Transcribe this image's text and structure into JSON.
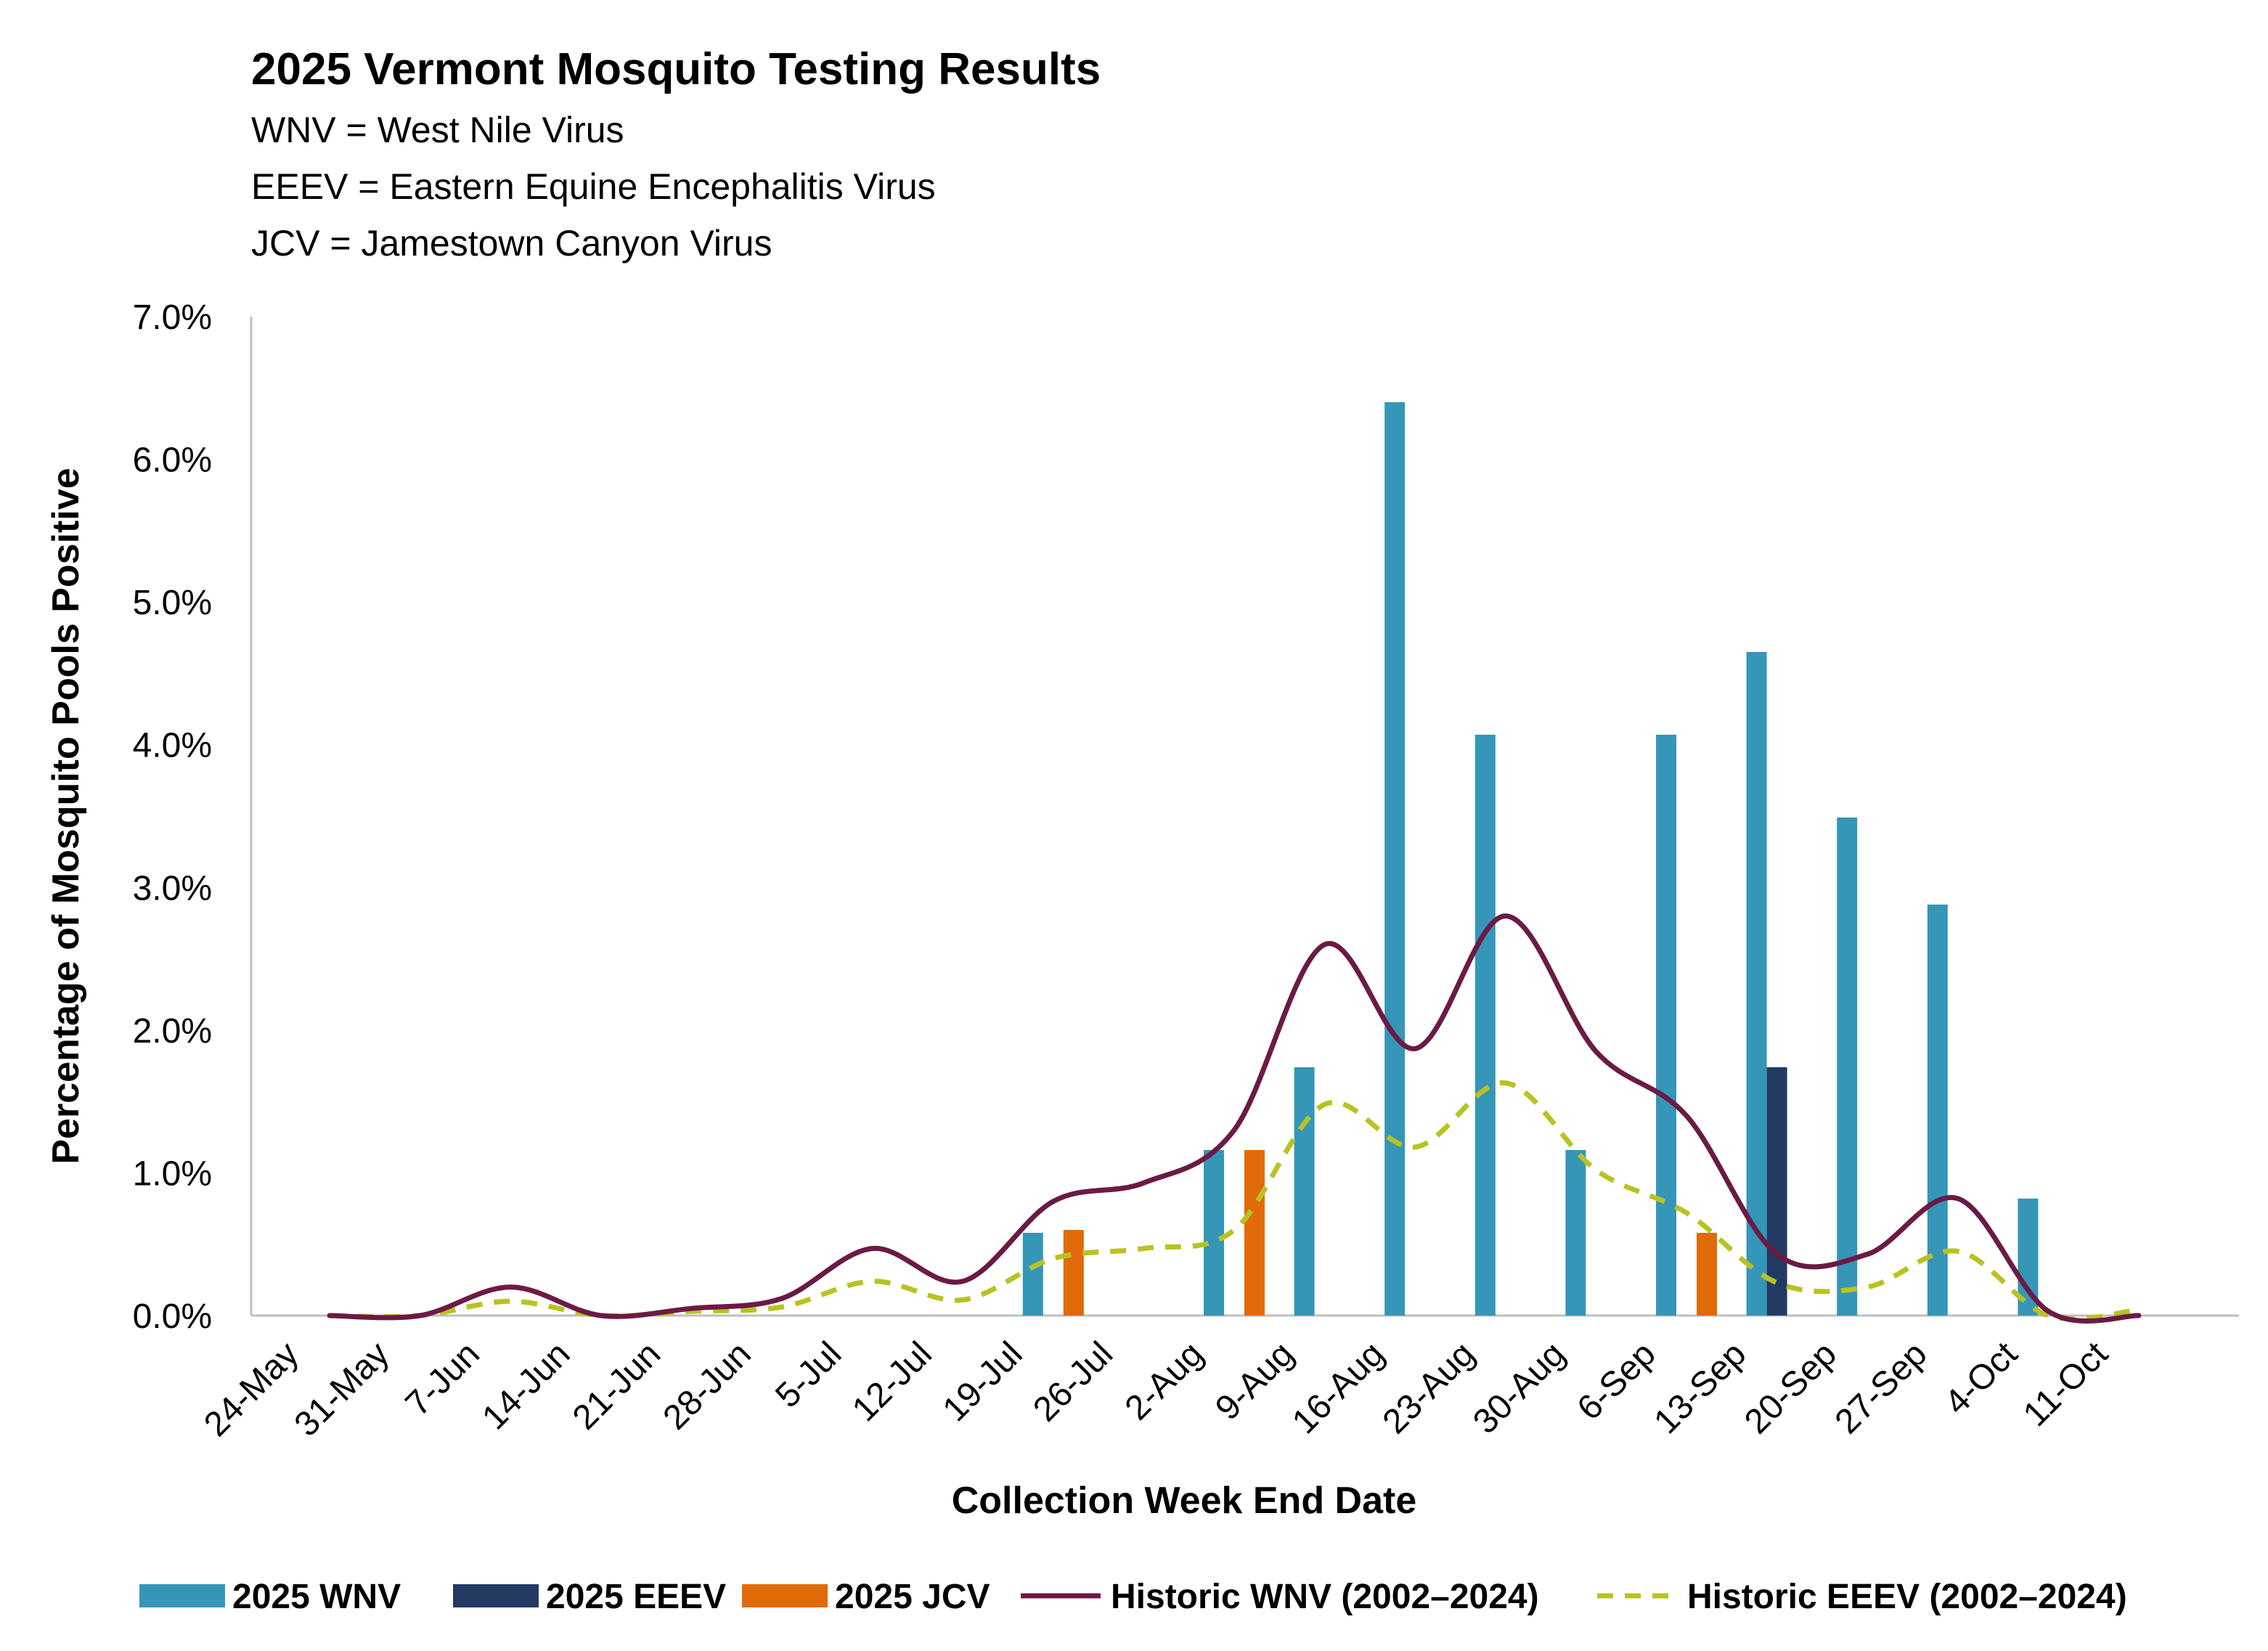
{
  "chart_data": {
    "type": "bar",
    "title": "2025 Vermont Mosquito Testing Results",
    "subtitle_lines": [
      "WNV = West Nile Virus",
      "EEEV = Eastern Equine Encephalitis Virus",
      "JCV = Jamestown Canyon Virus"
    ],
    "xlabel": "Collection Week End Date",
    "ylabel": "Percentage of Mosquito Pools Positive",
    "ylim": [
      0,
      7.0
    ],
    "y_ticks": [
      "0.0%",
      "1.0%",
      "2.0%",
      "3.0%",
      "4.0%",
      "5.0%",
      "6.0%",
      "7.0%"
    ],
    "y_tick_values": [
      0,
      1,
      2,
      3,
      4,
      5,
      6,
      7
    ],
    "categories": [
      "24-May",
      "31-May",
      "7-Jun",
      "14-Jun",
      "21-Jun",
      "28-Jun",
      "5-Jul",
      "12-Jul",
      "19-Jul",
      "26-Jul",
      "2-Aug",
      "9-Aug",
      "16-Aug",
      "23-Aug",
      "30-Aug",
      "6-Sep",
      "13-Sep",
      "20-Sep",
      "27-Sep",
      "4-Oct",
      "11-Oct"
    ],
    "series": [
      {
        "name": "2025 WNV",
        "type": "bar",
        "color": "#3596b8",
        "values": [
          0,
          0,
          0,
          0,
          0,
          0,
          0,
          0,
          0.58,
          0,
          1.16,
          1.74,
          6.4,
          4.07,
          1.16,
          4.07,
          4.65,
          3.49,
          2.88,
          0.82,
          0
        ]
      },
      {
        "name": "2025 EEEV",
        "type": "bar",
        "color": "#233a63",
        "values": [
          0,
          0,
          0,
          0,
          0,
          0,
          0,
          0,
          0,
          0,
          0,
          0,
          0,
          0,
          0,
          0,
          1.74,
          0,
          0,
          0,
          0
        ]
      },
      {
        "name": "2025 JCV",
        "type": "bar",
        "color": "#e06a08",
        "values": [
          0,
          0,
          0,
          0,
          0,
          0,
          0,
          0,
          0.6,
          0,
          1.16,
          0,
          0,
          0,
          0,
          0.58,
          0,
          0,
          0,
          0,
          0
        ]
      },
      {
        "name": "Historic WNV (2002–2024)",
        "type": "line",
        "style": "solid",
        "color": "#6b1a45",
        "values": [
          0,
          0,
          0.2,
          0,
          0.05,
          0.12,
          0.47,
          0.24,
          0.8,
          0.93,
          1.3,
          2.6,
          1.87,
          2.8,
          1.85,
          1.4,
          0.43,
          0.43,
          0.82,
          0.03,
          0
        ]
      },
      {
        "name": "Historic EEEV (2002–2024)",
        "type": "line",
        "style": "dashed",
        "color": "#b9c222",
        "values": [
          0,
          0,
          0.1,
          0,
          0.03,
          0.06,
          0.24,
          0.11,
          0.4,
          0.47,
          0.6,
          1.48,
          1.18,
          1.63,
          1.02,
          0.72,
          0.23,
          0.2,
          0.45,
          0,
          0.04
        ]
      }
    ],
    "legend_position": "bottom",
    "grid": false
  }
}
